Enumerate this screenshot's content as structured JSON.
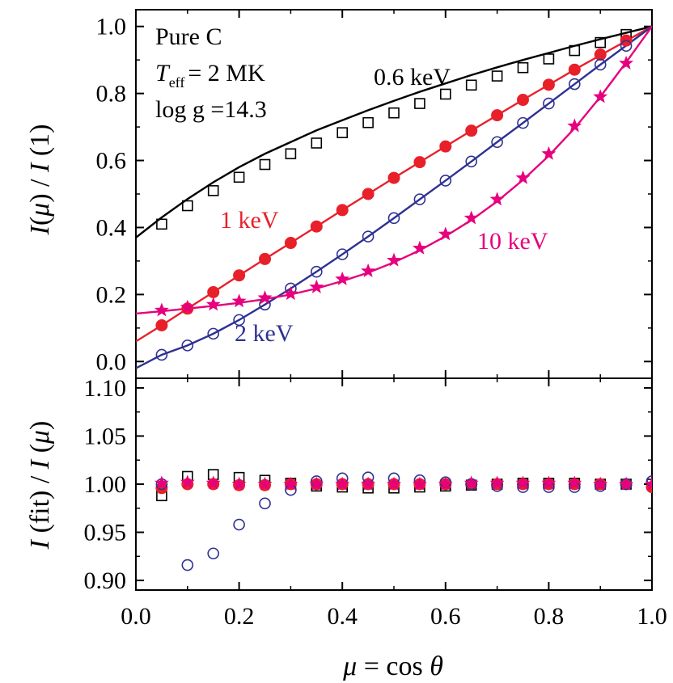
{
  "chart_data": [
    {
      "type": "scatter",
      "title": "",
      "xlabel": "μ = cos θ",
      "ylabel": "I(μ) / I (1)",
      "xlim": [
        0.0,
        1.0
      ],
      "ylim": [
        -0.05,
        1.05
      ],
      "x_ticks": [
        "0.0",
        "0.2",
        "0.4",
        "0.6",
        "0.8",
        "1.0"
      ],
      "y_ticks": [
        "0.0",
        "0.2",
        "0.4",
        "0.6",
        "0.8",
        "1.0"
      ],
      "annotations": {
        "composition": "Pure C",
        "teff_symbol": "T",
        "teff_subscript": "eff",
        "teff_value": "= 2 MK",
        "logg": "log g =14.3"
      },
      "x": [
        0.05,
        0.1,
        0.15,
        0.2,
        0.25,
        0.3,
        0.35,
        0.4,
        0.45,
        0.5,
        0.55,
        0.6,
        0.65,
        0.7,
        0.75,
        0.8,
        0.85,
        0.9,
        0.95
      ],
      "series": [
        {
          "name": "0.6 keV",
          "color": "#000000",
          "marker": "open-square",
          "values": [
            0.41,
            0.465,
            0.51,
            0.55,
            0.588,
            0.62,
            0.652,
            0.683,
            0.713,
            0.742,
            0.77,
            0.798,
            0.825,
            0.852,
            0.877,
            0.903,
            0.928,
            0.952,
            0.976
          ],
          "fit": [
            0.37,
            0.43,
            0.485,
            0.535,
            0.58,
            0.62,
            0.655,
            0.69,
            0.72,
            0.75,
            0.778,
            0.805,
            0.83,
            0.855,
            0.878,
            0.9,
            0.921,
            0.942,
            0.962,
            0.981,
            1.0
          ]
        },
        {
          "name": "1 keV",
          "color": "#e8202a",
          "marker": "filled-circle",
          "values": [
            0.108,
            0.158,
            0.207,
            0.257,
            0.306,
            0.354,
            0.403,
            0.452,
            0.5,
            0.548,
            0.595,
            0.642,
            0.689,
            0.735,
            0.781,
            0.826,
            0.871,
            0.916,
            0.958
          ],
          "fit": [
            0.06,
            0.108,
            0.158,
            0.207,
            0.257,
            0.306,
            0.354,
            0.403,
            0.452,
            0.5,
            0.548,
            0.595,
            0.642,
            0.689,
            0.735,
            0.781,
            0.826,
            0.871,
            0.914,
            0.957,
            1.0
          ]
        },
        {
          "name": "2 keV",
          "color": "#2e3192",
          "marker": "open-circle",
          "values": [
            0.02,
            0.048,
            0.083,
            0.124,
            0.17,
            0.218,
            0.268,
            0.32,
            0.373,
            0.428,
            0.484,
            0.54,
            0.597,
            0.655,
            0.712,
            0.77,
            0.828,
            0.886,
            0.942
          ],
          "fit": [
            -0.02,
            0.02,
            0.048,
            0.083,
            0.124,
            0.17,
            0.218,
            0.268,
            0.32,
            0.373,
            0.428,
            0.484,
            0.54,
            0.597,
            0.655,
            0.712,
            0.77,
            0.828,
            0.886,
            0.943,
            1.0
          ]
        },
        {
          "name": "10 keV",
          "color": "#e6007e",
          "marker": "filled-star",
          "values": [
            0.153,
            0.162,
            0.17,
            0.18,
            0.19,
            0.202,
            0.222,
            0.246,
            0.27,
            0.302,
            0.338,
            0.38,
            0.428,
            0.484,
            0.548,
            0.62,
            0.703,
            0.79,
            0.89
          ],
          "fit": [
            0.143,
            0.15,
            0.158,
            0.166,
            0.175,
            0.186,
            0.2,
            0.218,
            0.24,
            0.265,
            0.296,
            0.332,
            0.374,
            0.422,
            0.478,
            0.542,
            0.614,
            0.696,
            0.79,
            0.893,
            1.0
          ]
        }
      ]
    },
    {
      "type": "scatter",
      "xlabel": "μ = cos θ",
      "ylabel": "I (fit) / I (μ)",
      "xlim": [
        0.0,
        1.0
      ],
      "ylim": [
        0.89,
        1.11
      ],
      "x_ticks": [
        "0.0",
        "0.2",
        "0.4",
        "0.6",
        "0.8",
        "1.0"
      ],
      "y_ticks": [
        "0.90",
        "0.95",
        "1.00",
        "1.05",
        "1.10"
      ],
      "x": [
        0.05,
        0.1,
        0.15,
        0.2,
        0.25,
        0.3,
        0.35,
        0.4,
        0.45,
        0.5,
        0.55,
        0.6,
        0.65,
        0.7,
        0.75,
        0.8,
        0.85,
        0.9,
        0.95,
        1.0
      ],
      "series": [
        {
          "name": "0.6 keV",
          "color": "#000000",
          "marker": "open-square",
          "values": [
            0.988,
            1.008,
            1.01,
            1.007,
            1.004,
            1.001,
            0.998,
            0.997,
            0.996,
            0.996,
            0.997,
            0.998,
            0.999,
            1.0,
            1.001,
            1.001,
            1.001,
            1.0,
            1.0,
            1.0
          ]
        },
        {
          "name": "1 keV",
          "color": "#e8202a",
          "marker": "filled-circle",
          "values": [
            0.996,
            1.0,
            1.0,
            0.999,
            0.999,
            1.0,
            1.0,
            1.0,
            1.0,
            1.0,
            1.0,
            1.0,
            1.0,
            1.0,
            1.0,
            1.0,
            1.0,
            1.0,
            1.0,
            0.997
          ]
        },
        {
          "name": "2 keV",
          "color": "#2e3192",
          "marker": "open-circle",
          "values": [
            1.0,
            0.916,
            0.928,
            0.958,
            0.98,
            0.994,
            1.003,
            1.006,
            1.007,
            1.006,
            1.004,
            1.002,
            1.0,
            0.998,
            0.997,
            0.997,
            0.997,
            0.998,
            1.0,
            1.003
          ]
        },
        {
          "name": "10 keV",
          "color": "#e6007e",
          "marker": "filled-star",
          "values": [
            1.001,
            1.002,
            1.001,
            1.0,
            1.0,
            1.0,
            1.0,
            1.0,
            1.0,
            1.0,
            1.0,
            1.0,
            1.001,
            1.001,
            1.001,
            1.001,
            1.001,
            1.0,
            1.0,
            1.0
          ]
        }
      ]
    }
  ]
}
